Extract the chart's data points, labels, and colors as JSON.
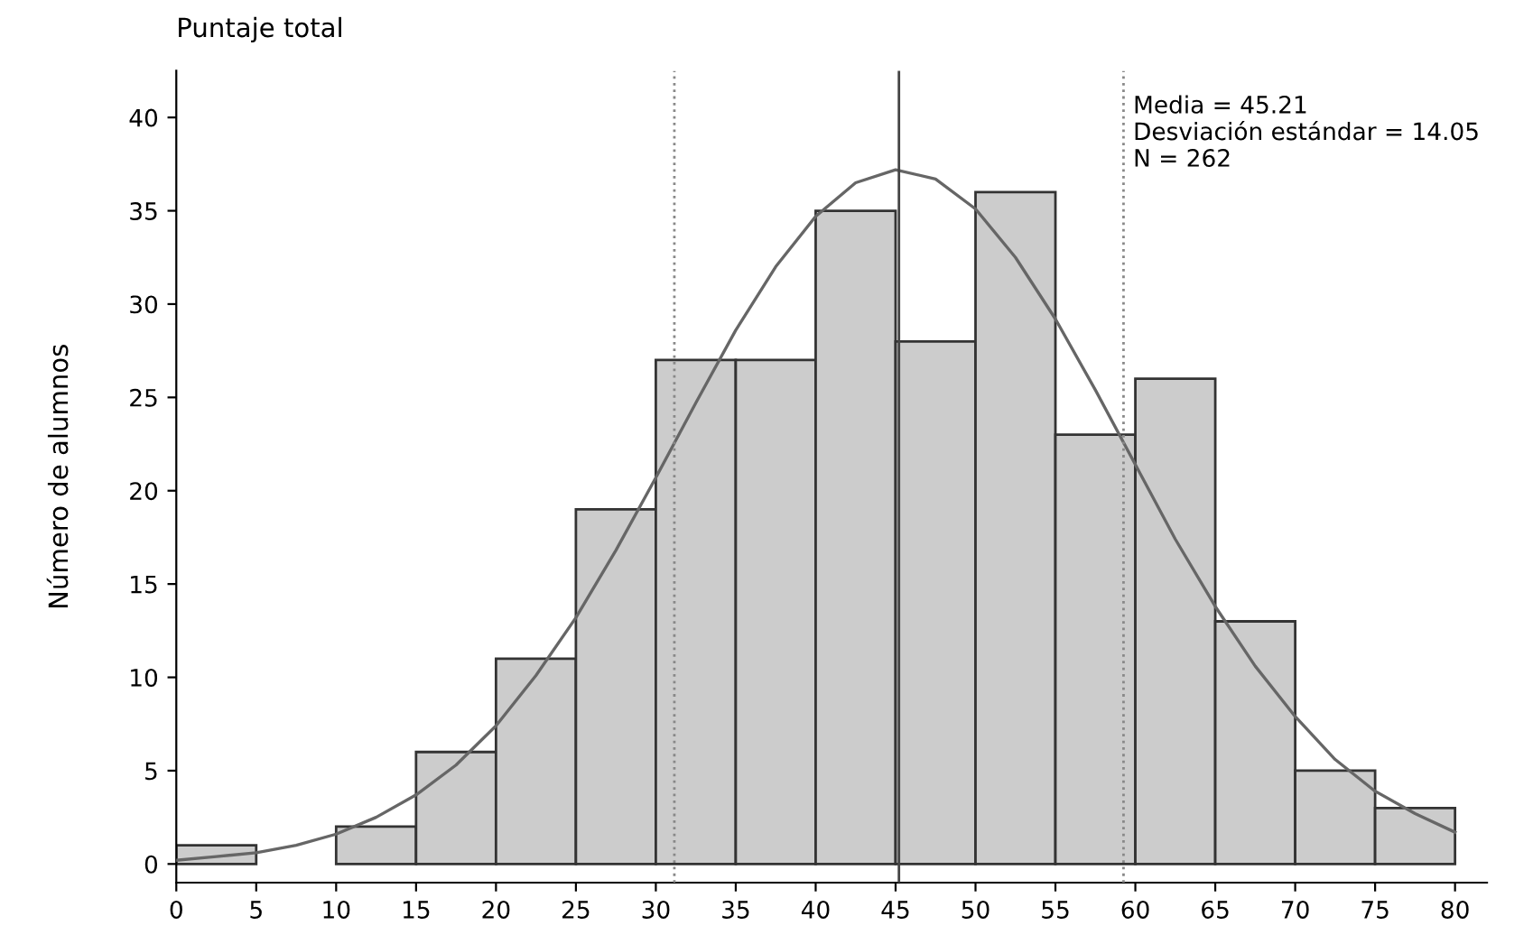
{
  "chart_data": {
    "type": "histogram",
    "title": "Puntaje total",
    "ylabel": "Número de alumnos",
    "bins": [
      0,
      5,
      10,
      15,
      20,
      25,
      30,
      35,
      40,
      45,
      50,
      55,
      60,
      65,
      70,
      75,
      80
    ],
    "values": [
      1,
      0,
      2,
      6,
      11,
      19,
      27,
      27,
      35,
      28,
      36,
      23,
      26,
      13,
      5,
      3
    ],
    "color": "#cccccc",
    "series": [
      {
        "type": "line",
        "color": "#666666",
        "x": [
          0,
          2.5,
          5,
          7.5,
          10,
          12.5,
          15,
          17.5,
          20,
          22.5,
          25,
          27.5,
          30,
          32.5,
          35,
          37.5,
          40,
          42.5,
          45,
          47.5,
          50,
          52.5,
          55,
          57.5,
          60,
          62.5,
          65,
          67.5,
          70,
          72.5,
          75,
          77.5,
          80
        ],
        "values": [
          0.2,
          0.4,
          0.6,
          1.0,
          1.6,
          2.5,
          3.7,
          5.3,
          7.4,
          10.1,
          13.2,
          16.8,
          20.7,
          24.7,
          28.6,
          32.0,
          34.7,
          36.5,
          37.2,
          36.7,
          35.1,
          32.5,
          29.2,
          25.4,
          21.4,
          17.4,
          13.8,
          10.6,
          7.9,
          5.6,
          3.9,
          2.7,
          1.7
        ]
      }
    ],
    "ref_lines": [
      {
        "axis": "x",
        "value": 45.21,
        "color": "#444444",
        "line_style": "solid"
      },
      {
        "axis": "x",
        "value": 31.16,
        "color": "#888888",
        "line_style": "dotted"
      },
      {
        "axis": "x",
        "value": 59.26,
        "color": "#888888",
        "line_style": "dotted"
      }
    ],
    "annotations": [
      "Media = 45.21\nDesviación estándar = 14.05\nN = 262"
    ],
    "xlim": [
      0,
      82
    ],
    "ylim": [
      -1,
      42.5
    ],
    "xticks": [
      0,
      5,
      10,
      15,
      20,
      25,
      30,
      35,
      40,
      45,
      50,
      55,
      60,
      65,
      70,
      75,
      80
    ],
    "yticks": [
      0,
      5,
      10,
      15,
      20,
      25,
      30,
      35,
      40
    ],
    "grid": false
  }
}
